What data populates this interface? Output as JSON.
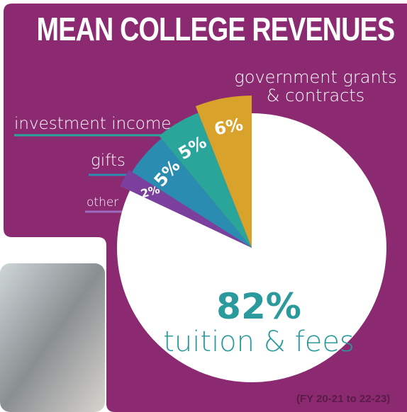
{
  "chart_data": {
    "type": "pie",
    "title": "MEAN COLLEGE REVENUES",
    "note": "(FY 20-21 to 22-23)",
    "categories": [
      "tuition & fees",
      "other",
      "gifts",
      "investment income",
      "government grants & contracts"
    ],
    "values": [
      82,
      2,
      5,
      5,
      6
    ],
    "value_labels": [
      "82%",
      "2%",
      "5%",
      "5%",
      "6%"
    ],
    "colors": [
      "#ffffff",
      "#7b3f9e",
      "#2a8cb0",
      "#2aa59a",
      "#d9a22a"
    ]
  }
}
